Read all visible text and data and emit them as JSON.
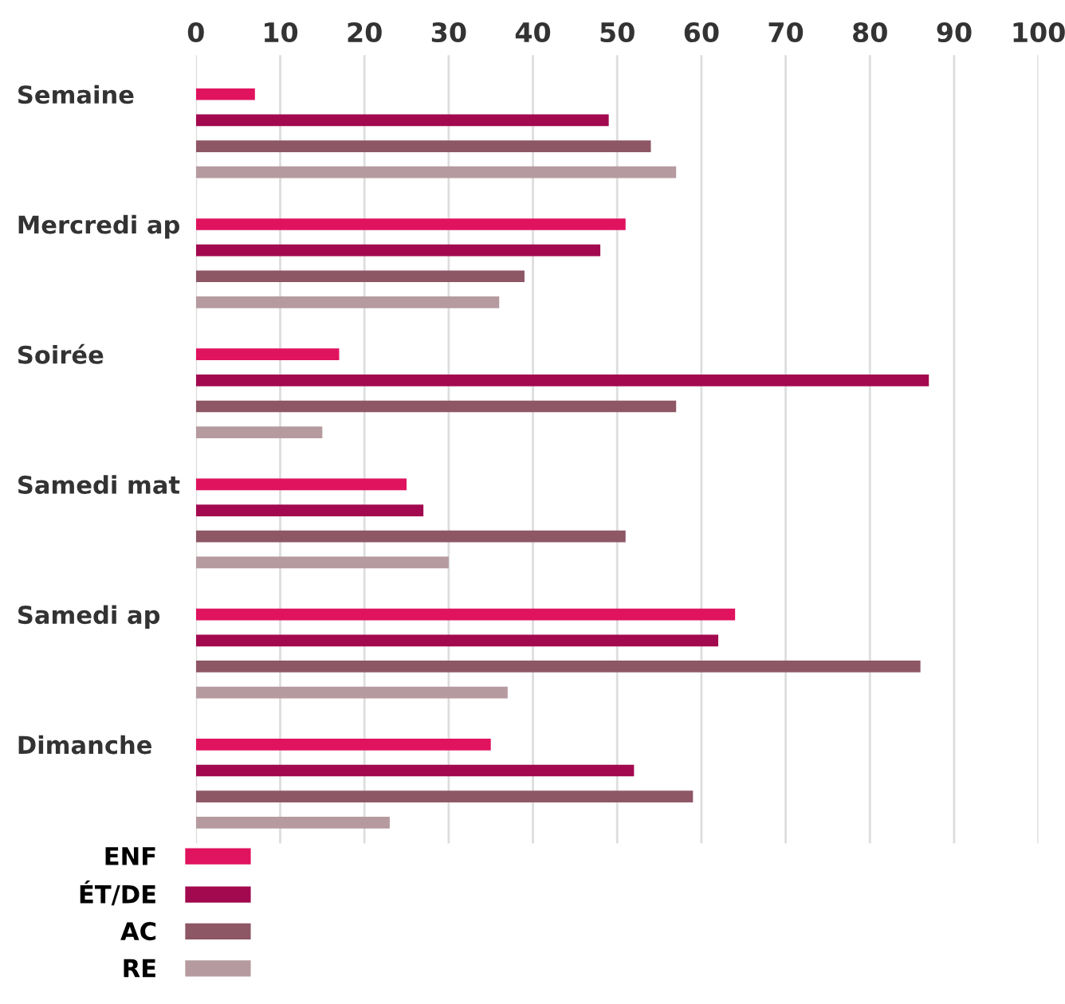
{
  "chart_data": {
    "type": "bar",
    "orientation": "horizontal",
    "categories": [
      "Semaine",
      "Mercredi ap",
      "Soirée",
      "Samedi mat",
      "Samedi ap",
      "Dimanche"
    ],
    "series": [
      {
        "name": "ENF",
        "color": "#e0135f",
        "values": [
          7,
          51,
          17,
          25,
          64,
          35
        ]
      },
      {
        "name": "ÉT/DE",
        "color": "#a3094f",
        "values": [
          49,
          48,
          87,
          27,
          62,
          52
        ]
      },
      {
        "name": "AC",
        "color": "#8e5766",
        "values": [
          54,
          39,
          57,
          51,
          86,
          59
        ]
      },
      {
        "name": "RE",
        "color": "#b59a9f",
        "values": [
          57,
          36,
          15,
          30,
          37,
          23
        ]
      }
    ],
    "xlim": [
      0,
      100
    ],
    "xticks": [
      0,
      10,
      20,
      30,
      40,
      50,
      60,
      70,
      80,
      90,
      100
    ],
    "grid": "x",
    "legend": "bottom left"
  }
}
